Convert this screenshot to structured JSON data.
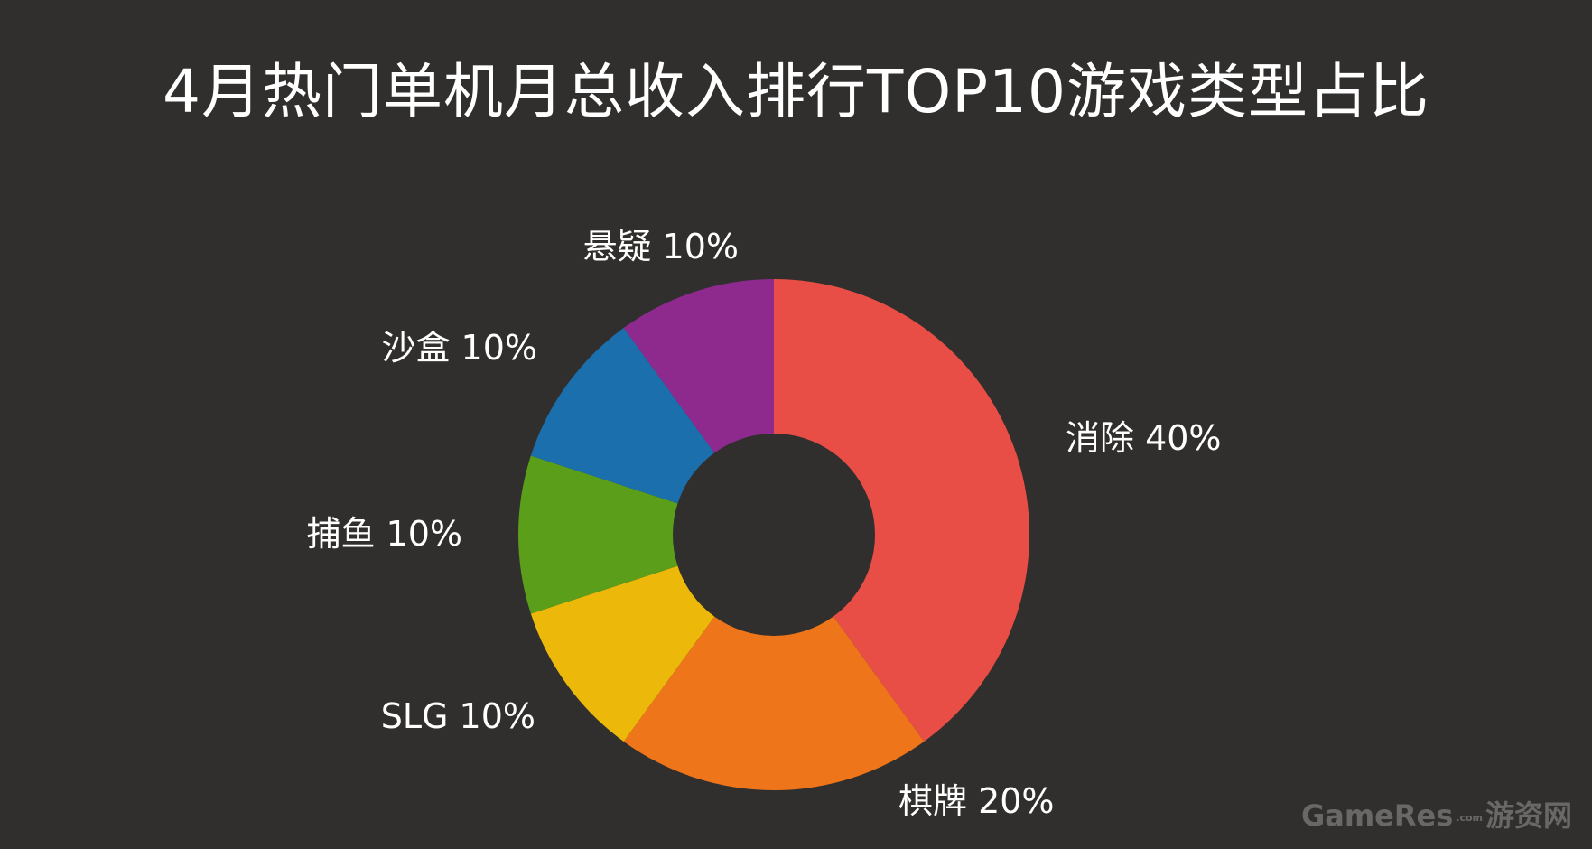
{
  "chart_data": {
    "type": "pie",
    "title": "4月热门单机月总收入排行TOP10游戏类型占比",
    "donut": true,
    "legend": "none",
    "slices": [
      {
        "label": "消除",
        "value": 40,
        "display": "消除 40%",
        "color": "#e84e45"
      },
      {
        "label": "棋牌",
        "value": 20,
        "display": "棋牌 20%",
        "color": "#ee751a"
      },
      {
        "label": "SLG",
        "value": 10,
        "display": "SLG 10%",
        "color": "#ecb80a"
      },
      {
        "label": "捕鱼",
        "value": 10,
        "display": "捕鱼 10%",
        "color": "#5a9e1a"
      },
      {
        "label": "沙盒",
        "value": 10,
        "display": "沙盒 10%",
        "color": "#1a6fac"
      },
      {
        "label": "悬疑",
        "value": 10,
        "display": "悬疑 10%",
        "color": "#8e2a8e"
      }
    ]
  },
  "watermark": {
    "brand": "GameRes",
    "dotcom": ".com",
    "cn": "游资网"
  },
  "colors": {
    "background": "#302f2d",
    "text": "#ffffff"
  }
}
